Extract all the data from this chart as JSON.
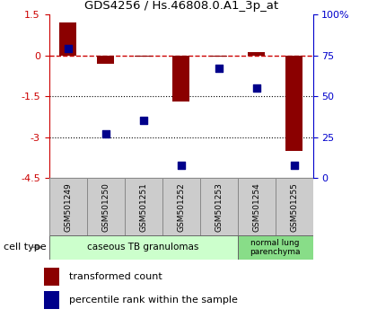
{
  "title": "GDS4256 / Hs.46808.0.A1_3p_at",
  "samples": [
    "GSM501249",
    "GSM501250",
    "GSM501251",
    "GSM501252",
    "GSM501253",
    "GSM501254",
    "GSM501255"
  ],
  "transformed_count": [
    1.2,
    -0.3,
    -0.05,
    -1.7,
    -0.05,
    0.1,
    -3.5
  ],
  "percentile_rank": [
    79,
    27,
    35,
    8,
    67,
    55,
    8
  ],
  "ylim_left": [
    -4.5,
    1.5
  ],
  "ylim_right": [
    0,
    100
  ],
  "hlines": [
    -1.5,
    -3.0
  ],
  "bar_color": "#8B0000",
  "dot_color": "#00008B",
  "group1_label": "caseous TB granulomas",
  "group1_color": "#ccffcc",
  "group1_count": 5,
  "group2_label": "normal lung\nparenchyma",
  "group2_color": "#88dd88",
  "group2_count": 2,
  "legend_bar_label": "transformed count",
  "legend_dot_label": "percentile rank within the sample",
  "cell_type_label": "cell type",
  "tick_color_left": "#cc0000",
  "tick_color_right": "#0000cc",
  "box_facecolor": "#cccccc",
  "box_edgecolor": "#888888"
}
